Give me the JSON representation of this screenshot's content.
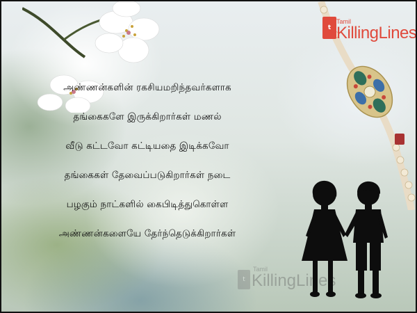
{
  "logo": {
    "small_text": "Tamil",
    "main_text": "KillingLines",
    "mark_letter": "t",
    "brand_color": "#e04a3c"
  },
  "watermark": {
    "small_text": "Tamil",
    "main_text": "KillingLines",
    "mark_letter": "t"
  },
  "poem": {
    "lines": [
      "அண்ணன்களின் ரகசியமறிந்தவர்களாக",
      "தங்கைகளே இருக்கிறார்கள்  மணல்",
      "வீடு கட்டவோ கட்டியதை இடிக்கவோ",
      "தங்கைகள் தேவைப்படுகிறார்கள் நடை",
      "பழகும் நாட்களில்  கைபிடித்துகொள்ள",
      "அண்ணன்களையே தேர்ந்தெடுக்கிறார்கள்"
    ]
  },
  "illustrations": {
    "top_left": "white-blossom-branch",
    "top_right": "rakhi-thread",
    "bottom_right": "brother-sister-silhouette"
  }
}
